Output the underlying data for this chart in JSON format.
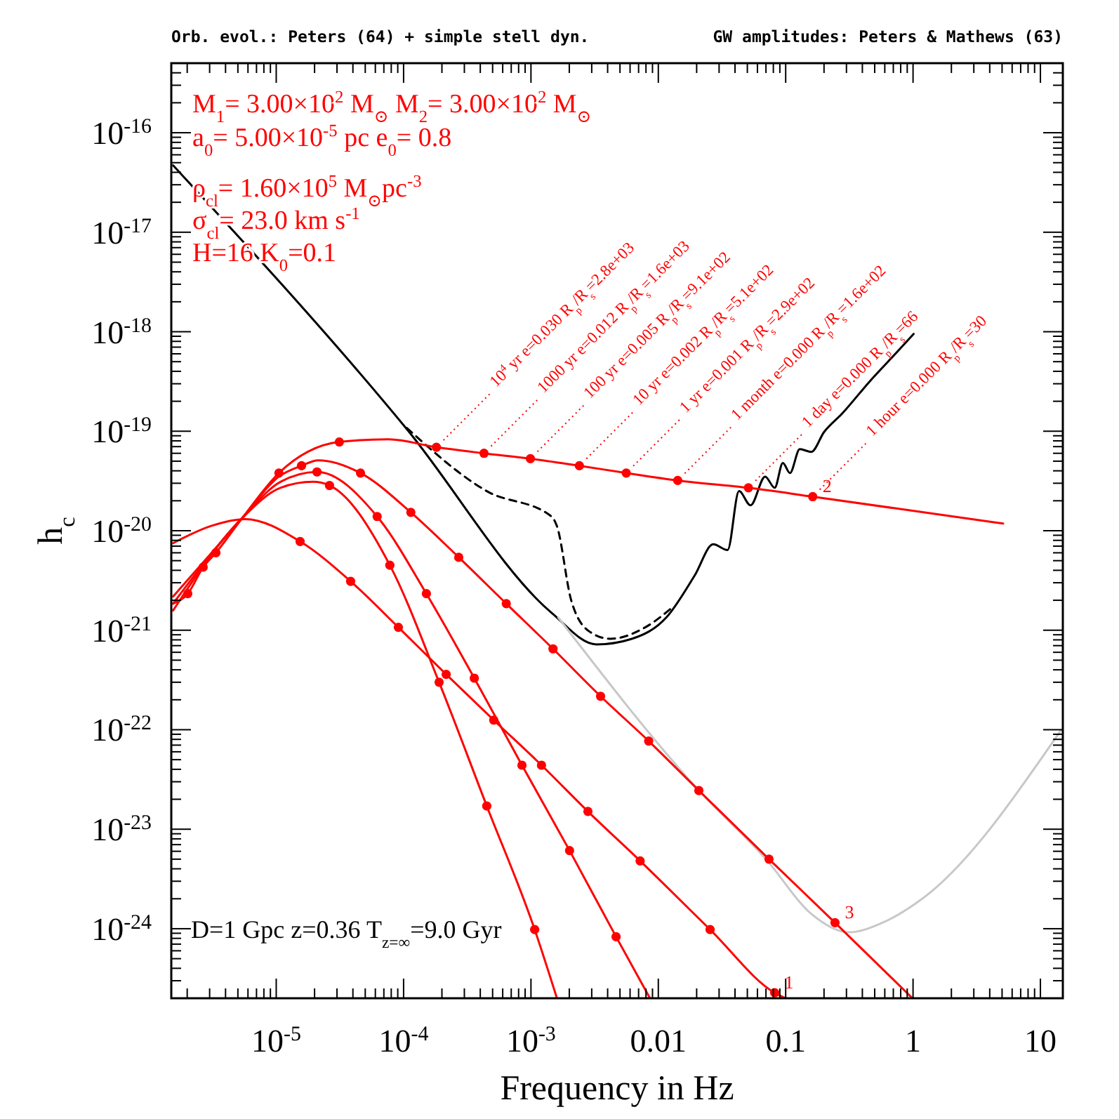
{
  "chart_data": {
    "type": "line",
    "title": "Orb. evol.: Peters (64) + simple stell dyn.",
    "subtitle": "GW amplitudes: Peters & Mathews (63)",
    "xlabel": "Frequency in Hz",
    "ylabel": "h$_{c}$",
    "log": "xy",
    "xlim": [
      1.5e-06,
      15
    ],
    "ylim": [
      2e-25,
      5e-16
    ],
    "xticks": [
      {
        "value": 2e-06,
        "label": null
      },
      {
        "value": 3e-06,
        "label": null
      },
      {
        "value": 4e-06,
        "label": null
      },
      {
        "value": 5e-06,
        "label": null
      },
      {
        "value": 6e-06,
        "label": null
      },
      {
        "value": 7e-06,
        "label": null
      },
      {
        "value": 8e-06,
        "label": null
      },
      {
        "value": 9e-06,
        "label": null
      },
      {
        "value": 1e-05,
        "label": "10$^{-5}$"
      },
      {
        "value": 2e-05,
        "label": null
      },
      {
        "value": 3e-05,
        "label": null
      },
      {
        "value": 4e-05,
        "label": null
      },
      {
        "value": 5e-05,
        "label": null
      },
      {
        "value": 6e-05,
        "label": null
      },
      {
        "value": 7e-05,
        "label": null
      },
      {
        "value": 8e-05,
        "label": null
      },
      {
        "value": 9e-05,
        "label": null
      },
      {
        "value": 0.0001,
        "label": "10$^{-4}$"
      },
      {
        "value": 0.0002,
        "label": null
      },
      {
        "value": 0.0003,
        "label": null
      },
      {
        "value": 0.0004,
        "label": null
      },
      {
        "value": 0.0005,
        "label": null
      },
      {
        "value": 0.0006,
        "label": null
      },
      {
        "value": 0.0007,
        "label": null
      },
      {
        "value": 0.0008,
        "label": null
      },
      {
        "value": 0.0009,
        "label": null
      },
      {
        "value": 0.001,
        "label": "10$^{-3}$"
      },
      {
        "value": 0.002,
        "label": null
      },
      {
        "value": 0.003,
        "label": null
      },
      {
        "value": 0.004,
        "label": null
      },
      {
        "value": 0.005,
        "label": null
      },
      {
        "value": 0.006,
        "label": null
      },
      {
        "value": 0.007,
        "label": null
      },
      {
        "value": 0.008,
        "label": null
      },
      {
        "value": 0.009,
        "label": null
      },
      0.01,
      {
        "value": 0.02,
        "label": null
      },
      {
        "value": 0.03,
        "label": null
      },
      {
        "value": 0.04,
        "label": null
      },
      {
        "value": 0.05,
        "label": null
      },
      {
        "value": 0.06,
        "label": null
      },
      {
        "value": 0.07,
        "label": null
      },
      {
        "value": 0.08,
        "label": null
      },
      {
        "value": 0.09,
        "label": null
      },
      0.1,
      {
        "value": 0.2,
        "label": null
      },
      {
        "value": 0.3,
        "label": null
      },
      {
        "value": 0.4,
        "label": null
      },
      {
        "value": 0.5,
        "label": null
      },
      {
        "value": 0.6,
        "label": null
      },
      {
        "value": 0.7,
        "label": null
      },
      {
        "value": 0.8,
        "label": null
      },
      {
        "value": 0.9,
        "label": null
      },
      1,
      {
        "value": 2,
        "label": null
      },
      {
        "value": 3,
        "label": null
      },
      {
        "value": 4,
        "label": null
      },
      {
        "value": 5,
        "label": null
      },
      {
        "value": 6,
        "label": null
      },
      {
        "value": 7,
        "label": null
      },
      {
        "value": 8,
        "label": null
      },
      {
        "value": 9,
        "label": null
      },
      10
    ],
    "yticks": [
      {
        "value": 3e-25,
        "label": null
      },
      {
        "value": 4e-25,
        "label": null
      },
      {
        "value": 5e-25,
        "label": null
      },
      {
        "value": 6e-25,
        "label": null
      },
      {
        "value": 7e-25,
        "label": null
      },
      {
        "value": 8e-25,
        "label": null
      },
      {
        "value": 9e-25,
        "label": null
      },
      {
        "value": 1e-24,
        "label": "10$^{-24}$"
      },
      {
        "value": 2e-24,
        "label": null
      },
      {
        "value": 3e-24,
        "label": null
      },
      {
        "value": 4e-24,
        "label": null
      },
      {
        "value": 5e-24,
        "label": null
      },
      {
        "value": 6e-24,
        "label": null
      },
      {
        "value": 7e-24,
        "label": null
      },
      {
        "value": 8e-24,
        "label": null
      },
      {
        "value": 9e-24,
        "label": null
      },
      {
        "value": 1e-23,
        "label": "10$^{-23}$"
      },
      {
        "value": 2e-23,
        "label": null
      },
      {
        "value": 3e-23,
        "label": null
      },
      {
        "value": 4e-23,
        "label": null
      },
      {
        "value": 5e-23,
        "label": null
      },
      {
        "value": 6e-23,
        "label": null
      },
      {
        "value": 7e-23,
        "label": null
      },
      {
        "value": 8e-23,
        "label": null
      },
      {
        "value": 9e-23,
        "label": null
      },
      {
        "value": 1e-22,
        "label": "10$^{-22}$"
      },
      {
        "value": 2e-22,
        "label": null
      },
      {
        "value": 3e-22,
        "label": null
      },
      {
        "value": 4e-22,
        "label": null
      },
      {
        "value": 5e-22,
        "label": null
      },
      {
        "value": 6e-22,
        "label": null
      },
      {
        "value": 7e-22,
        "label": null
      },
      {
        "value": 8e-22,
        "label": null
      },
      {
        "value": 9e-22,
        "label": null
      },
      {
        "value": 1e-21,
        "label": "10$^{-21}$"
      },
      {
        "value": 2e-21,
        "label": null
      },
      {
        "value": 3e-21,
        "label": null
      },
      {
        "value": 4e-21,
        "label": null
      },
      {
        "value": 5e-21,
        "label": null
      },
      {
        "value": 6e-21,
        "label": null
      },
      {
        "value": 7e-21,
        "label": null
      },
      {
        "value": 8e-21,
        "label": null
      },
      {
        "value": 9e-21,
        "label": null
      },
      {
        "value": 1e-20,
        "label": "10$^{-20}$"
      },
      {
        "value": 2e-20,
        "label": null
      },
      {
        "value": 3e-20,
        "label": null
      },
      {
        "value": 4e-20,
        "label": null
      },
      {
        "value": 5e-20,
        "label": null
      },
      {
        "value": 6e-20,
        "label": null
      },
      {
        "value": 7e-20,
        "label": null
      },
      {
        "value": 8e-20,
        "label": null
      },
      {
        "value": 9e-20,
        "label": null
      },
      {
        "value": 1e-19,
        "label": "10$^{-19}$"
      },
      {
        "value": 2e-19,
        "label": null
      },
      {
        "value": 3e-19,
        "label": null
      },
      {
        "value": 4e-19,
        "label": null
      },
      {
        "value": 5e-19,
        "label": null
      },
      {
        "value": 6e-19,
        "label": null
      },
      {
        "value": 7e-19,
        "label": null
      },
      {
        "value": 8e-19,
        "label": null
      },
      {
        "value": 9e-19,
        "label": null
      },
      {
        "value": 1e-18,
        "label": "10$^{-18}$"
      },
      {
        "value": 2e-18,
        "label": null
      },
      {
        "value": 3e-18,
        "label": null
      },
      {
        "value": 4e-18,
        "label": null
      },
      {
        "value": 5e-18,
        "label": null
      },
      {
        "value": 6e-18,
        "label": null
      },
      {
        "value": 7e-18,
        "label": null
      },
      {
        "value": 8e-18,
        "label": null
      },
      {
        "value": 9e-18,
        "label": null
      },
      {
        "value": 1e-17,
        "label": "10$^{-17}$"
      },
      {
        "value": 2e-17,
        "label": null
      },
      {
        "value": 3e-17,
        "label": null
      },
      {
        "value": 4e-17,
        "label": null
      },
      {
        "value": 5e-17,
        "label": null
      },
      {
        "value": 6e-17,
        "label": null
      },
      {
        "value": 7e-17,
        "label": null
      },
      {
        "value": 8e-17,
        "label": null
      },
      {
        "value": 9e-17,
        "label": null
      },
      {
        "value": 1e-16,
        "label": "10$^{-16}$"
      },
      {
        "value": 2e-16,
        "label": null
      },
      {
        "value": 3e-16,
        "label": null
      },
      {
        "value": 4e-16,
        "label": null
      }
    ],
    "series": [
      {
        "color": "#000000",
        "x": [
          1.55e-06,
          0.000106,
          0.00145,
          0.00327,
          0.0062,
          0.0116,
          0.0193,
          0.027,
          0.035,
          0.043,
          0.053,
          0.069,
          0.082,
          0.095,
          0.108,
          0.129,
          0.159,
          0.2,
          0.277,
          0.46,
          0.77,
          1.01
        ],
        "values": [
          4.7e-17,
          1.05e-19,
          1.5e-21,
          7.2e-22,
          8.2e-22,
          1.35e-21,
          3.55e-21,
          7.3e-21,
          6.4e-21,
          2.5e-20,
          1.8e-20,
          3.5e-20,
          2.7e-20,
          4.8e-20,
          3.8e-20,
          6.6e-20,
          6.2e-20,
          9.8e-20,
          1.5e-19,
          3.2e-19,
          6.5e-19,
          9.5e-19
        ]
      },
      {
        "color": "#000000",
        "line_style": "dashed",
        "x": [
          0.000106,
          0.00045,
          0.00145,
          0.0016,
          0.00207,
          0.00288,
          0.0042,
          0.0079,
          0.0132
        ],
        "values": [
          1.08e-19,
          2.5e-20,
          1.39e-20,
          1.11e-20,
          2e-21,
          9.7e-22,
          8.2e-22,
          1.07e-21,
          1.74e-21
        ]
      },
      {
        "color": "#c8c8c8",
        "x": [
          0.00164,
          0.0208,
          0.072,
          0.155,
          0.315,
          0.55,
          1.18,
          14.5
        ],
        "values": [
          1.34e-21,
          2.45e-23,
          4.8e-24,
          1.45e-24,
          9.2e-25,
          1.12e-24,
          2e-24,
          9.9e-23
        ]
      },
      {
        "color": "#ff0000",
        "x": [
          1.55e-06,
          2.02e-06,
          2.67e-06,
          3.36e-06,
          5.43e-06,
          1.05e-05,
          3.13e-05,
          7.6e-05,
          0.000181,
          0.000428,
          0.00099,
          0.0024,
          0.0056,
          0.0142,
          0.051,
          0.163,
          5.1
        ],
        "values": [
          1.85e-21,
          2.33e-21,
          4.3e-21,
          6e-21,
          1.35e-20,
          3.8e-20,
          7.8e-20,
          8.3e-20,
          6.9e-20,
          6e-20,
          5.3e-20,
          4.5e-20,
          3.8e-20,
          3.2e-20,
          2.7e-20,
          2.2e-20,
          1.18e-20
        ]
      },
      {
        "color": "#ff0000",
        "x": [
          1.55e-06,
          5.43e-06,
          1.05e-05,
          1.58e-05,
          2.14e-05,
          4.59e-05,
          0.000114,
          0.000271,
          0.00064,
          0.00149,
          0.00352,
          0.0084,
          0.0208,
          0.074,
          0.244,
          0.99
        ],
        "values": [
          2.18e-21,
          1.35e-20,
          3.5e-20,
          4.5e-20,
          5.1e-20,
          3.8e-20,
          1.53e-20,
          5.4e-21,
          1.85e-21,
          6.5e-22,
          2.17e-22,
          7.7e-23,
          2.45e-23,
          5e-24,
          1.15e-24,
          2e-25
        ]
      },
      {
        "color": "#ff0000",
        "x": [
          1.55e-06,
          5.43e-06,
          1.08e-05,
          2.09e-05,
          6.2e-05,
          0.000151,
          0.000359,
          0.00085,
          0.00201,
          0.00466,
          0.0086
        ],
        "values": [
          1.85e-21,
          1.35e-20,
          3.1e-20,
          3.9e-20,
          1.39e-20,
          2.33e-21,
          3.3e-22,
          4.4e-23,
          6.1e-24,
          8.3e-25,
          2e-25
        ]
      },
      {
        "color": "#ff0000",
        "x": [
          1.55e-06,
          5.43e-06,
          1.08e-05,
          1.94e-05,
          2.62e-05,
          7.8e-05,
          0.00019,
          0.00045,
          0.00107,
          0.0016
        ],
        "values": [
          1.58e-21,
          1.35e-20,
          2.7e-20,
          3.1e-20,
          2.85e-20,
          4.5e-21,
          3e-22,
          1.71e-23,
          9.8e-25,
          2e-25
        ]
      },
      {
        "color": "#ff0000",
        "x": [
          1.55e-06,
          3.03e-06,
          5.7e-06,
          1.54e-05,
          3.84e-05,
          9.1e-05,
          0.000216,
          0.00051,
          0.00121,
          0.0028,
          0.0072,
          0.0255,
          0.082,
          0.1
        ],
        "values": [
          7.5e-21,
          1.11e-20,
          1.31e-20,
          7.8e-21,
          3.1e-21,
          1.07e-21,
          3.6e-22,
          1.25e-22,
          4.4e-23,
          1.51e-23,
          4.8e-24,
          9.8e-25,
          2.27e-25,
          2e-25
        ]
      },
      {
        "type": "scatter",
        "marker": "circle",
        "color": "#ff0000",
        "x": [
          2.02e-06,
          2.67e-06,
          3.36e-06,
          1.05e-05,
          3.13e-05,
          0.000181,
          0.000428,
          0.00099,
          0.0024,
          0.0056,
          0.0142,
          0.051,
          0.163
        ],
        "values": [
          2.33e-21,
          4.3e-21,
          6e-21,
          3.8e-20,
          7.8e-20,
          6.9e-20,
          6e-20,
          5.3e-20,
          4.5e-20,
          3.8e-20,
          3.2e-20,
          2.7e-20,
          2.2e-20
        ]
      },
      {
        "type": "scatter",
        "marker": "circle",
        "color": "#ff0000",
        "x": [
          1.58e-05,
          4.59e-05,
          0.000114,
          0.000271,
          0.00064,
          0.00149,
          0.00352,
          0.0084,
          0.0208,
          0.074,
          0.244
        ],
        "values": [
          4.5e-20,
          3.8e-20,
          1.53e-20,
          5.4e-21,
          1.85e-21,
          6.5e-22,
          2.17e-22,
          7.7e-23,
          2.45e-23,
          5e-24,
          1.15e-24
        ]
      },
      {
        "type": "scatter",
        "marker": "circle",
        "color": "#ff0000",
        "x": [
          2.09e-05,
          6.2e-05,
          0.000151,
          0.000359,
          0.00085,
          0.00201,
          0.00466
        ],
        "values": [
          3.9e-20,
          1.39e-20,
          2.33e-21,
          3.3e-22,
          4.4e-23,
          6.1e-24,
          8.3e-25
        ]
      },
      {
        "type": "scatter",
        "marker": "circle",
        "color": "#ff0000",
        "x": [
          2.62e-05,
          7.8e-05,
          0.00019,
          0.00045,
          0.00107
        ],
        "values": [
          2.85e-20,
          4.5e-21,
          3e-22,
          1.71e-23,
          9.8e-25
        ]
      },
      {
        "type": "scatter",
        "marker": "circle",
        "color": "#ff0000",
        "x": [
          1.54e-05,
          3.84e-05,
          9.1e-05,
          0.000216,
          0.00051,
          0.00121,
          0.0028,
          0.0072,
          0.0255,
          0.082
        ],
        "values": [
          7.8e-21,
          3.1e-21,
          1.07e-21,
          3.6e-22,
          1.25e-22,
          4.4e-23,
          1.51e-23,
          4.8e-24,
          9.8e-25,
          2.27e-25
        ]
      }
    ],
    "annotations": [
      "M$_{1}$= 3.00×10$^{2}$ M$_{⊙}$ M$_{2}$= 3.00×10$^{2}$ M$_{⊙}$",
      "a$_{0}$= 5.00×10$^{-5}$ pc   e$_{0}$= 0.8",
      "ρ$_{cl}$= 1.60×10$^{5}$ M$_{⊙}$pc$^{-3}$",
      "σ$_{cl}$= 23.0 km s$^{-1}$",
      "H=16   K$_{0}$=0.1",
      "D=1 Gpc z=0.36 T$_{z=∞}$=9.0 Gyr",
      {
        "text": "10$^{4}$ yr e=0.030 R$_{p}$/R$_{s}$=2.8e+03",
        "x": 0.000181,
        "y": 6.9e-20
      },
      {
        "text": "1000 yr e=0.012 R$_{p}$/R$_{s}$=1.6e+03",
        "x": 0.000428,
        "y": 6e-20
      },
      {
        "text": "100 yr e=0.005 R$_{p}$/R$_{s}$=9.1e+02",
        "x": 0.00099,
        "y": 5.3e-20
      },
      {
        "text": "10 yr e=0.002 R$_{p}$/R$_{s}$=5.1e+02",
        "x": 0.0024,
        "y": 4.5e-20
      },
      {
        "text": "1 yr e=0.001 R$_{p}$/R$_{s}$=2.9e+02",
        "x": 0.0056,
        "y": 3.8e-20
      },
      {
        "text": "1 month e=0.000 R$_{p}$/R$_{s}$=1.6e+02",
        "x": 0.0142,
        "y": 3.2e-20
      },
      {
        "text": "1 day e=0.000 R$_{p}$/R$_{s}$=66",
        "x": 0.051,
        "y": 2.7e-20
      },
      {
        "text": "1 hour e=0.000 R$_{p}$/R$_{s}$=30",
        "x": 0.163,
        "y": 2.2e-20
      },
      {
        "text": "2",
        "x": 0.163,
        "y": 2.2e-20
      },
      {
        "text": "3",
        "x": 0.244,
        "y": 1.15e-24
      },
      {
        "text": "1",
        "x": 0.082,
        "y": 2.27e-25
      }
    ]
  }
}
